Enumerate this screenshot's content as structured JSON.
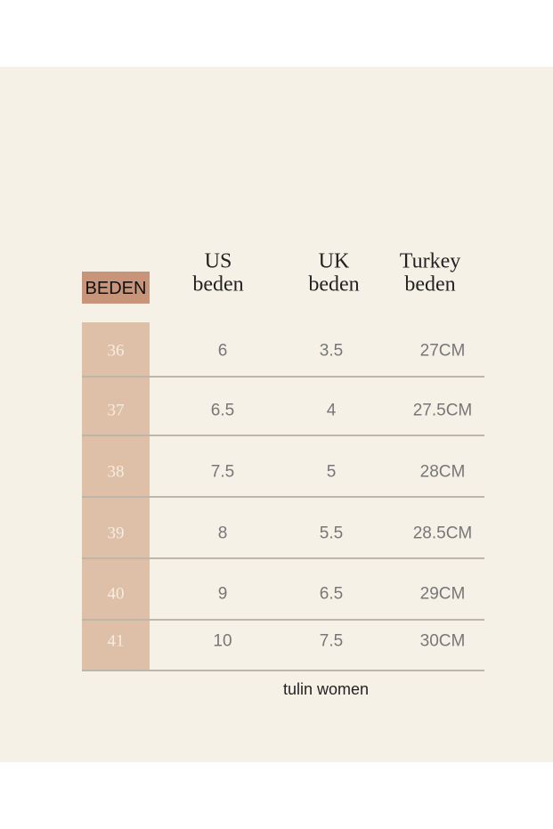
{
  "table": {
    "header": [
      "BEDEN",
      "US\nbeden",
      "UK\nbeden",
      "Turkey\nbeden"
    ],
    "rows": [
      [
        "36",
        "6",
        "3.5",
        "27CM"
      ],
      [
        "37",
        "6.5",
        "4",
        "27.5CM"
      ],
      [
        "38",
        "7.5",
        "5",
        "28CM"
      ],
      [
        "39",
        "8",
        "5.5",
        "28.5CM"
      ],
      [
        "40",
        "9",
        "6.5",
        "29CM"
      ],
      [
        "41",
        "10",
        "7.5",
        "30CM"
      ]
    ]
  },
  "footer": "tulin women"
}
